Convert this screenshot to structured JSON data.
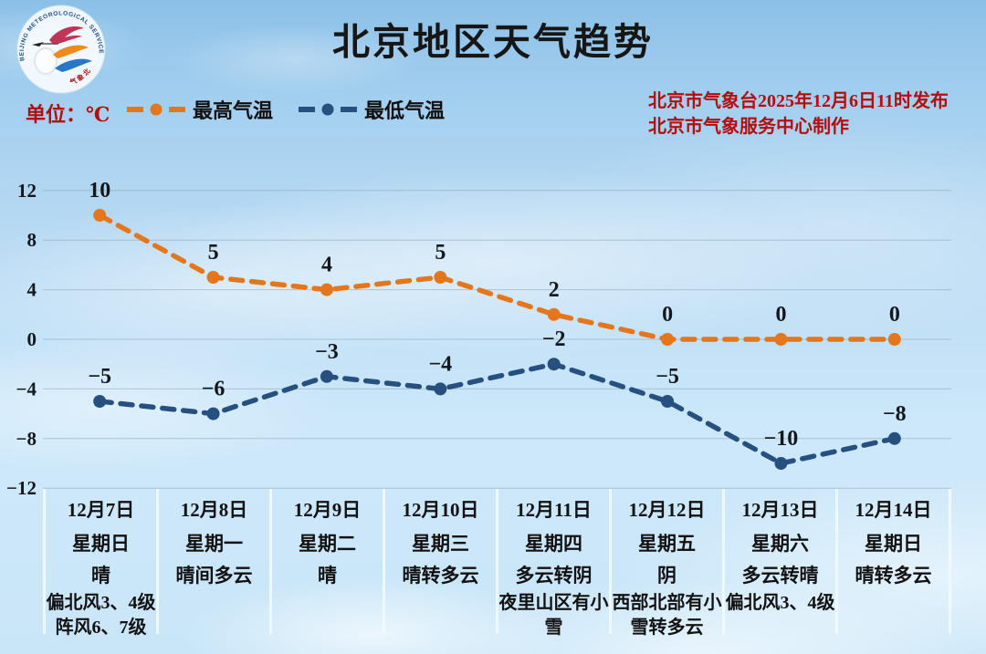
{
  "title": "北京地区天气趋势",
  "unit_label": "单位：℃",
  "legend": {
    "high_label": "最高气温",
    "low_label": "最低气温"
  },
  "source": {
    "line1": "北京市气象台2025年12月6日11时发布",
    "line2": "北京市气象服务中心制作"
  },
  "logo": {
    "rim_text_top": "BEIJING METEOROLOGICAL SERVICE",
    "rim_text_bottom": "气象北京"
  },
  "colors": {
    "high": "#e4761b",
    "low": "#26507f",
    "accent_red": "#b50d0c",
    "grid": "#93a9ba",
    "label_text": "#14181c",
    "separator": "#f0faff"
  },
  "chart_data": {
    "type": "line",
    "categories": [
      "12月7日",
      "12月8日",
      "12月9日",
      "12月10日",
      "12月11日",
      "12月12日",
      "12月13日",
      "12月14日"
    ],
    "series": [
      {
        "name": "最高气温",
        "values": [
          10,
          5,
          4,
          5,
          2,
          0,
          0,
          0
        ],
        "color": "#e4761b"
      },
      {
        "name": "最低气温",
        "values": [
          -5,
          -6,
          -3,
          -4,
          -2,
          -5,
          -10,
          -8
        ],
        "color": "#26507f"
      }
    ],
    "ylim": [
      -12,
      12
    ],
    "yticks": [
      12,
      8,
      4,
      0,
      -4,
      -8,
      -12
    ],
    "grid": true,
    "legend_position": "top-left",
    "line_style": "dashed",
    "title": "北京地区天气趋势",
    "ylabel": "℃"
  },
  "table": {
    "columns": [
      {
        "date": "12月7日",
        "weekday": "星期日",
        "weather": "晴",
        "details": [
          "偏北风3、4级",
          "阵风6、7级"
        ]
      },
      {
        "date": "12月8日",
        "weekday": "星期一",
        "weather": "晴间多云",
        "details": []
      },
      {
        "date": "12月9日",
        "weekday": "星期二",
        "weather": "晴",
        "details": []
      },
      {
        "date": "12月10日",
        "weekday": "星期三",
        "weather": "晴转多云",
        "details": []
      },
      {
        "date": "12月11日",
        "weekday": "星期四",
        "weather": "多云转阴",
        "details": [
          "夜里山区有小雪"
        ]
      },
      {
        "date": "12月12日",
        "weekday": "星期五",
        "weather": "阴",
        "details": [
          "西部北部有小雪转多云"
        ]
      },
      {
        "date": "12月13日",
        "weekday": "星期六",
        "weather": "多云转晴",
        "details": [
          "偏北风3、4级"
        ]
      },
      {
        "date": "12月14日",
        "weekday": "星期日",
        "weather": "晴转多云",
        "details": []
      }
    ]
  }
}
